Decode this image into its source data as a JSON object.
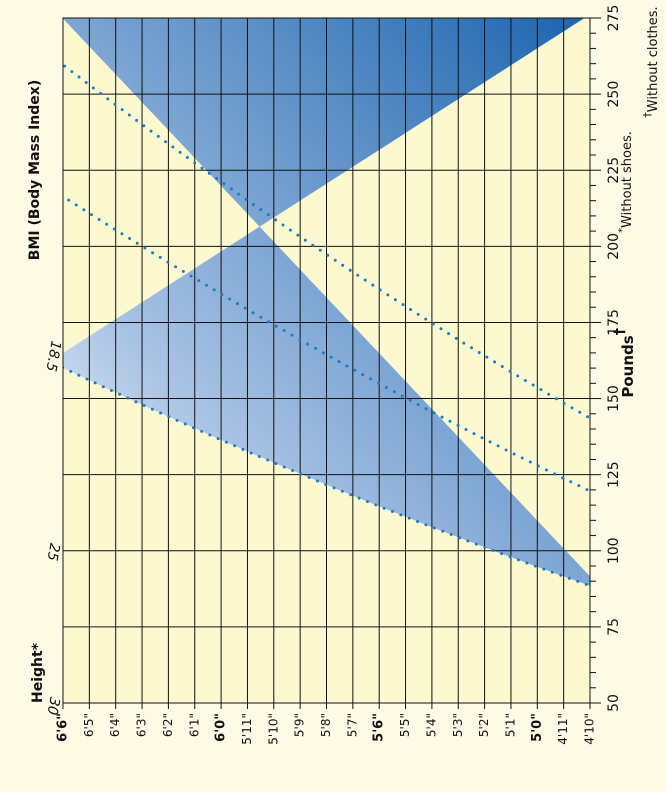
{
  "chart_data": {
    "type": "area",
    "orientation": "rotated-90-counterclockwise",
    "ylabel": "Height*",
    "xlabel": "Pounds",
    "xlabel_mark": "†",
    "title": "BMI (Body Mass Index)",
    "footnotes": [
      "*Without shoes.",
      "†Without clothes."
    ],
    "footnote_marks": [
      "*",
      "†"
    ],
    "footnote_texts": [
      "Without shoes.",
      "Without clothes."
    ],
    "x_ticks": [
      50,
      75,
      100,
      125,
      150,
      175,
      200,
      225,
      250,
      275
    ],
    "x_range": [
      50,
      275
    ],
    "x_minor_step": 5,
    "y_ticks": [
      "4'10\"",
      "4'11\"",
      "5'0\"",
      "5'1\"",
      "5'2\"",
      "5'3\"",
      "5'4\"",
      "5'5\"",
      "5'6\"",
      "5'7\"",
      "5'8\"",
      "5'9\"",
      "5'10\"",
      "5'11\"",
      "6'0\"",
      "6'1\"",
      "6'2\"",
      "6'3\"",
      "6'4\"",
      "6'5\"",
      "6'6\""
    ],
    "y_bold_ticks": [
      "5'0\"",
      "5'6\"",
      "6'0\"",
      "6'6\""
    ],
    "y_range_inches": [
      58,
      78
    ],
    "bmi_lines": [
      {
        "label": "18.5",
        "value": 18.5
      },
      {
        "label": "25",
        "value": 25
      },
      {
        "label": "30",
        "value": 30
      }
    ],
    "grid": true,
    "colors": {
      "underweight": "#fcf9d0",
      "healthy_light": "#e3ecf8",
      "overweight_dark": "#1a63ad",
      "dots": "#1f7bc4",
      "grid": "#111111",
      "background": "#fdfbe6"
    }
  }
}
